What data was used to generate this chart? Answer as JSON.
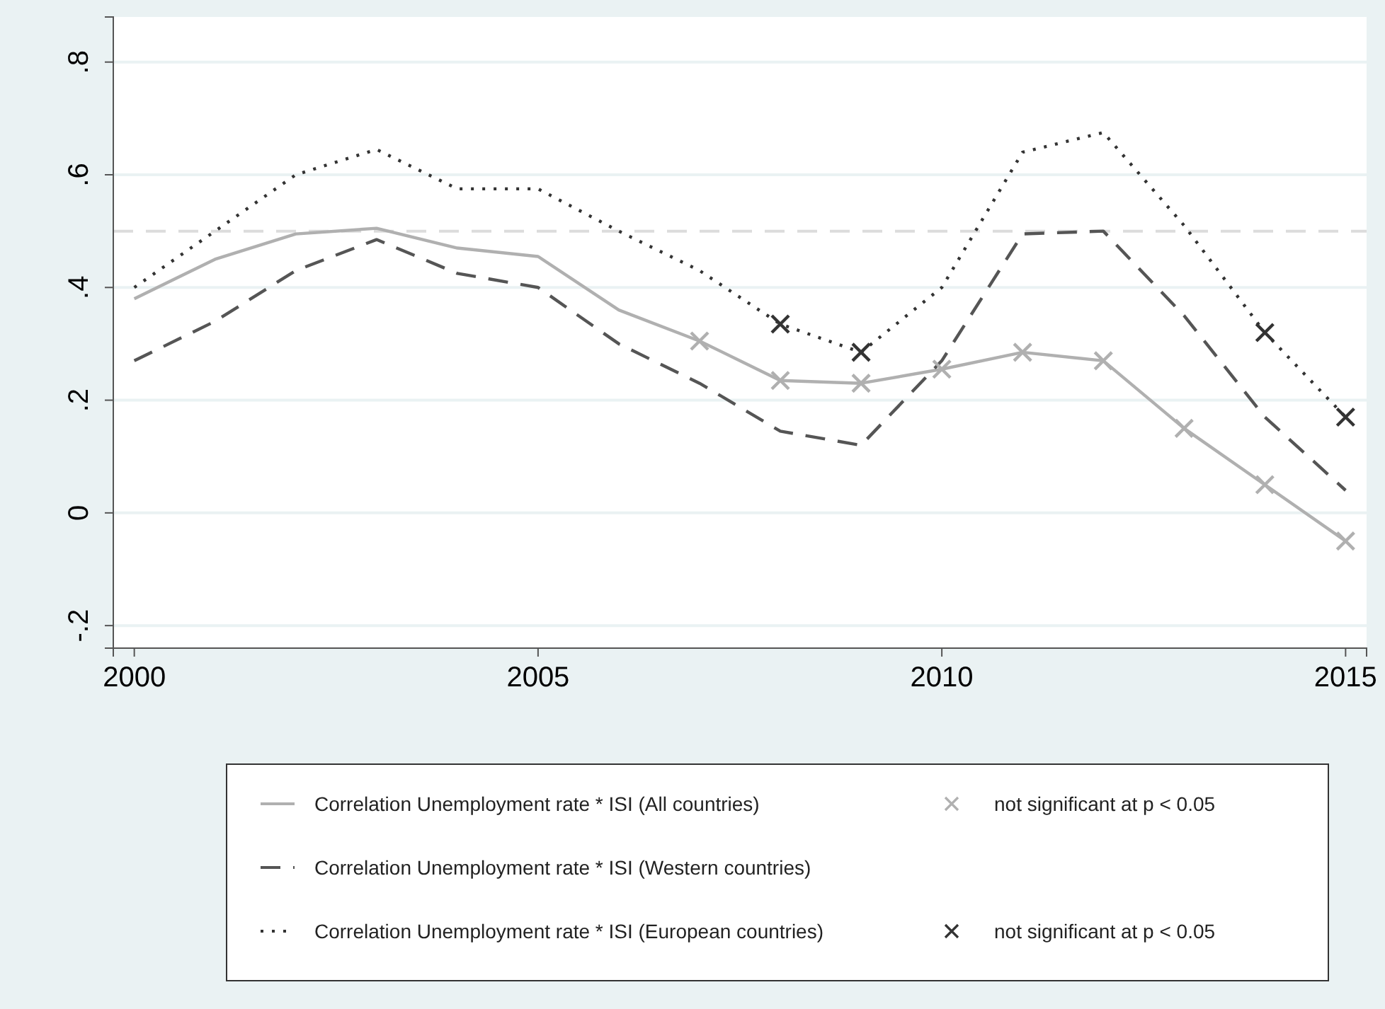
{
  "chart_data": {
    "type": "line",
    "x": [
      2000,
      2001,
      2002,
      2003,
      2004,
      2005,
      2006,
      2007,
      2008,
      2009,
      2010,
      2011,
      2012,
      2013,
      2014,
      2015
    ],
    "xlim": [
      1999.74,
      2015.26
    ],
    "xticks": [
      2000,
      2005,
      2010,
      2015
    ],
    "ylim": [
      -0.24,
      0.88
    ],
    "yticks": [
      {
        "value": -0.2,
        "label": "-.2"
      },
      {
        "value": 0,
        "label": "0"
      },
      {
        "value": 0.2,
        "label": ".2"
      },
      {
        "value": 0.4,
        "label": ".4"
      },
      {
        "value": 0.6,
        "label": ".6"
      },
      {
        "value": 0.8,
        "label": ".8"
      }
    ],
    "grid": "y",
    "legend": "bottom",
    "ref_lines": [
      {
        "axis": "y",
        "value": 0.5,
        "color": "#dcdcdc",
        "line_style": "dashed"
      }
    ],
    "series": [
      {
        "name": "Correlation Unemployment rate * ISI (All countries)",
        "color": "#b0b0b0",
        "line_style": "solid",
        "marker": "none",
        "values": [
          0.38,
          0.45,
          0.495,
          0.505,
          0.47,
          0.455,
          0.36,
          0.305,
          0.235,
          0.23,
          0.255,
          0.285,
          0.27,
          0.15,
          0.05,
          -0.05
        ]
      },
      {
        "name": "Correlation Unemployment rate * ISI (Western countries)",
        "color": "#555555",
        "line_style": "dashed",
        "marker": "none",
        "values": [
          0.27,
          0.34,
          0.43,
          0.485,
          0.425,
          0.4,
          0.3,
          0.23,
          0.145,
          0.12,
          0.27,
          0.495,
          0.5,
          0.35,
          0.17,
          0.04
        ]
      },
      {
        "name": "Correlation Unemployment rate * ISI (European countries)",
        "color": "#333333",
        "line_style": "dotted",
        "marker": "none",
        "values": [
          0.4,
          0.5,
          0.6,
          0.645,
          0.575,
          0.575,
          0.5,
          0.43,
          0.335,
          0.285,
          0.4,
          0.64,
          0.675,
          0.51,
          0.32,
          0.17
        ]
      },
      {
        "name": "not significant at p < 0.05",
        "type": "scatter",
        "color": "#b0b0b0",
        "marker": "cross",
        "x": [
          2007,
          2008,
          2009,
          2010,
          2011,
          2012,
          2013,
          2014,
          2015
        ],
        "values": [
          0.305,
          0.235,
          0.23,
          0.255,
          0.285,
          0.27,
          0.15,
          0.05,
          -0.05
        ]
      },
      {
        "name": "not significant at p < 0.05",
        "type": "scatter",
        "color": "#333333",
        "marker": "cross",
        "x": [
          2008,
          2009,
          2014,
          2015
        ],
        "values": [
          0.335,
          0.285,
          0.32,
          0.17
        ]
      }
    ]
  }
}
